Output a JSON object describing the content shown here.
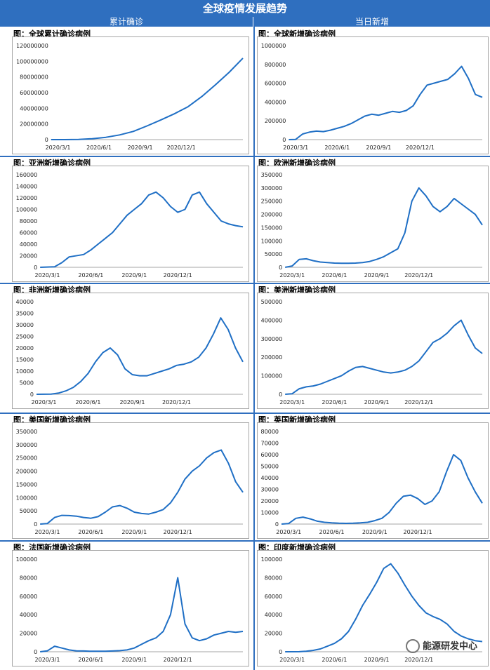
{
  "header": {
    "title": "全球疫情发展趋势",
    "left_col": "累计确诊",
    "right_col": "当日新增"
  },
  "watermark": "能源研发中心",
  "chart_data": [
    {
      "type": "line",
      "title": "图：全球累计确诊病例",
      "key": "world_total",
      "ylim": [
        0,
        120000000
      ],
      "yticks": [
        "0",
        "20000000",
        "40000000",
        "60000000",
        "80000000",
        "100000000",
        "120000000"
      ],
      "xticks": [
        "2020/3/1",
        "2020/6/1",
        "2020/9/1",
        "2020/12/1"
      ],
      "xlim": [
        0,
        14
      ],
      "series": [
        {
          "x": [
            0,
            1,
            2,
            3,
            4,
            5,
            6,
            7,
            8,
            9,
            10,
            11,
            12,
            13,
            14
          ],
          "values": [
            0,
            0,
            300000,
            1200000,
            3000000,
            6000000,
            10500000,
            17500000,
            25000000,
            33000000,
            42000000,
            55000000,
            70000000,
            86000000,
            104000000
          ]
        }
      ]
    },
    {
      "type": "line",
      "title": "图：全球新增确诊病例",
      "key": "world_new",
      "ylim": [
        0,
        1000000
      ],
      "yticks": [
        "0",
        "200000",
        "400000",
        "600000",
        "800000",
        "1000000"
      ],
      "xticks": [
        "2020/3/1",
        "2020/6/1",
        "2020/9/1",
        "2020/12/1"
      ],
      "xlim": [
        0,
        14
      ],
      "series": [
        {
          "x": [
            0,
            0.5,
            1,
            1.5,
            2,
            2.5,
            3,
            3.5,
            4,
            4.5,
            5,
            5.5,
            6,
            6.5,
            7,
            7.5,
            8,
            8.5,
            9,
            9.5,
            10,
            10.5,
            11,
            11.5,
            12,
            12.5,
            13,
            13.5,
            14
          ],
          "values": [
            0,
            2000,
            60000,
            80000,
            90000,
            85000,
            100000,
            120000,
            140000,
            170000,
            210000,
            250000,
            270000,
            260000,
            280000,
            300000,
            290000,
            310000,
            360000,
            480000,
            580000,
            600000,
            620000,
            640000,
            700000,
            780000,
            650000,
            480000,
            450000
          ]
        }
      ]
    },
    {
      "type": "line",
      "title": "图：亚洲新增确诊病例",
      "key": "asia",
      "ylim": [
        0,
        160000
      ],
      "yticks": [
        "0",
        "20000",
        "40000",
        "60000",
        "80000",
        "100000",
        "120000",
        "140000",
        "160000"
      ],
      "xticks": [
        "2020/3/1",
        "2020/6/1",
        "2020/9/1",
        "2020/12/1"
      ],
      "xlim": [
        0,
        14
      ],
      "series": [
        {
          "x": [
            0,
            1,
            1.5,
            2,
            3,
            3.5,
            4,
            4.5,
            5,
            5.5,
            6,
            6.5,
            7,
            7.5,
            8,
            8.5,
            9,
            9.5,
            10,
            10.5,
            11,
            11.5,
            12,
            12.5,
            13,
            13.5,
            14
          ],
          "values": [
            0,
            1000,
            8000,
            18000,
            22000,
            30000,
            40000,
            50000,
            60000,
            75000,
            90000,
            100000,
            110000,
            125000,
            130000,
            120000,
            105000,
            95000,
            100000,
            125000,
            130000,
            110000,
            95000,
            80000,
            75000,
            72000,
            70000
          ]
        }
      ]
    },
    {
      "type": "line",
      "title": "图：欧洲新增确诊病例",
      "key": "europe",
      "ylim": [
        0,
        350000
      ],
      "yticks": [
        "0",
        "50000",
        "100000",
        "150000",
        "200000",
        "250000",
        "300000",
        "350000"
      ],
      "xticks": [
        "2020/3/1",
        "2020/6/1",
        "2020/9/1",
        "2020/12/1"
      ],
      "xlim": [
        0,
        14
      ],
      "series": [
        {
          "x": [
            0,
            0.5,
            1,
            1.5,
            2,
            2.5,
            3,
            3.5,
            4,
            4.5,
            5,
            5.5,
            6,
            6.5,
            7,
            7.5,
            8,
            8.5,
            9,
            9.5,
            10,
            10.5,
            11,
            11.5,
            12,
            12.5,
            13,
            13.5,
            14
          ],
          "values": [
            0,
            5000,
            30000,
            32000,
            25000,
            20000,
            18000,
            16000,
            15000,
            15000,
            16000,
            18000,
            22000,
            30000,
            40000,
            55000,
            70000,
            130000,
            250000,
            300000,
            270000,
            230000,
            210000,
            230000,
            260000,
            240000,
            220000,
            200000,
            160000
          ]
        }
      ]
    },
    {
      "type": "line",
      "title": "图：非洲新增确诊病例",
      "key": "africa",
      "ylim": [
        0,
        40000
      ],
      "yticks": [
        "0",
        "5000",
        "10000",
        "15000",
        "20000",
        "25000",
        "30000",
        "35000",
        "40000"
      ],
      "xticks": [
        "2020/3/1",
        "2020/6/1",
        "2020/9/1",
        "2020/12/1"
      ],
      "xlim": [
        0,
        14
      ],
      "series": [
        {
          "x": [
            0,
            1,
            1.5,
            2,
            2.5,
            3,
            3.5,
            4,
            4.5,
            5,
            5.5,
            6,
            6.5,
            7,
            7.5,
            8,
            8.5,
            9,
            9.5,
            10,
            10.5,
            11,
            11.5,
            12,
            12.5,
            13,
            13.5,
            14
          ],
          "values": [
            0,
            100,
            500,
            1500,
            3000,
            5500,
            9000,
            14000,
            18000,
            20000,
            17000,
            11000,
            8500,
            8000,
            8000,
            9000,
            10000,
            11000,
            12500,
            13000,
            14000,
            16000,
            20000,
            26000,
            33000,
            28000,
            20000,
            14000
          ]
        }
      ]
    },
    {
      "type": "line",
      "title": "图：美洲新增确诊病例",
      "key": "americas",
      "ylim": [
        0,
        500000
      ],
      "yticks": [
        "0",
        "100000",
        "200000",
        "300000",
        "400000",
        "500000"
      ],
      "xticks": [
        "2020/3/1",
        "2020/6/1",
        "2020/9/1",
        "2020/12/1"
      ],
      "xlim": [
        0,
        14
      ],
      "series": [
        {
          "x": [
            0,
            0.5,
            1,
            1.5,
            2,
            2.5,
            3,
            3.5,
            4,
            4.5,
            5,
            5.5,
            6,
            6.5,
            7,
            7.5,
            8,
            8.5,
            9,
            9.5,
            10,
            10.5,
            11,
            11.5,
            12,
            12.5,
            13,
            13.5,
            14
          ],
          "values": [
            0,
            3000,
            30000,
            40000,
            45000,
            55000,
            70000,
            85000,
            100000,
            125000,
            145000,
            150000,
            140000,
            130000,
            120000,
            115000,
            120000,
            130000,
            150000,
            180000,
            230000,
            280000,
            300000,
            330000,
            370000,
            400000,
            320000,
            250000,
            220000
          ]
        }
      ]
    },
    {
      "type": "line",
      "title": "图：美国新增确诊病例",
      "key": "usa",
      "ylim": [
        0,
        350000
      ],
      "yticks": [
        "0",
        "50000",
        "100000",
        "150000",
        "200000",
        "250000",
        "300000",
        "350000"
      ],
      "xticks": [
        "2020/3/1",
        "2020/6/1",
        "2020/9/1",
        "2020/12/1"
      ],
      "xlim": [
        0,
        14
      ],
      "series": [
        {
          "x": [
            0,
            0.5,
            1,
            1.5,
            2,
            2.5,
            3,
            3.5,
            4,
            4.5,
            5,
            5.5,
            6,
            6.5,
            7,
            7.5,
            8,
            8.5,
            9,
            9.5,
            10,
            10.5,
            11,
            11.5,
            12,
            12.5,
            13,
            13.5,
            14
          ],
          "values": [
            0,
            2000,
            25000,
            33000,
            32000,
            30000,
            25000,
            22000,
            28000,
            45000,
            65000,
            70000,
            60000,
            45000,
            40000,
            38000,
            45000,
            55000,
            80000,
            120000,
            170000,
            200000,
            220000,
            250000,
            270000,
            280000,
            230000,
            160000,
            120000
          ]
        }
      ]
    },
    {
      "type": "line",
      "title": "图：英国新增确诊病例",
      "key": "uk",
      "ylim": [
        0,
        80000
      ],
      "yticks": [
        "0",
        "10000",
        "20000",
        "30000",
        "40000",
        "50000",
        "60000",
        "70000",
        "80000"
      ],
      "xticks": [
        "2020/3/1",
        "2020/6/1",
        "2020/9/1",
        "2020/12/1"
      ],
      "xlim": [
        0,
        14
      ],
      "series": [
        {
          "x": [
            0,
            0.5,
            1,
            1.5,
            2,
            2.5,
            3,
            3.5,
            4,
            4.5,
            5,
            5.5,
            6,
            6.5,
            7,
            7.5,
            8,
            8.5,
            9,
            9.5,
            10,
            10.5,
            11,
            11.5,
            12,
            12.5,
            13,
            13.5,
            14
          ],
          "values": [
            0,
            500,
            5000,
            6000,
            4500,
            2500,
            1500,
            1000,
            700,
            600,
            700,
            1000,
            1500,
            3000,
            5000,
            10000,
            18000,
            24000,
            25000,
            22000,
            17000,
            20000,
            28000,
            45000,
            60000,
            55000,
            40000,
            28000,
            18000
          ]
        }
      ]
    },
    {
      "type": "line",
      "title": "图：法国新增确诊病例",
      "key": "france",
      "ylim": [
        0,
        100000
      ],
      "yticks": [
        "0",
        "20000",
        "40000",
        "60000",
        "80000",
        "100000"
      ],
      "xticks": [
        "2020/3/1",
        "2020/6/1",
        "2020/9/1",
        "2020/12/1"
      ],
      "xlim": [
        0,
        14
      ],
      "series": [
        {
          "x": [
            0,
            0.5,
            1,
            1.5,
            2,
            2.5,
            3,
            3.5,
            4,
            4.5,
            5,
            5.5,
            6,
            6.5,
            7,
            7.5,
            8,
            8.5,
            9,
            9.5,
            10,
            10.5,
            11,
            11.5,
            12,
            12.5,
            13,
            13.5,
            14
          ],
          "values": [
            0,
            1000,
            6000,
            4000,
            2000,
            1000,
            800,
            500,
            500,
            600,
            800,
            1200,
            2000,
            4000,
            8000,
            12000,
            15000,
            22000,
            40000,
            80000,
            30000,
            15000,
            12000,
            14000,
            18000,
            20000,
            22000,
            21000,
            22000
          ]
        }
      ]
    },
    {
      "type": "line",
      "title": "图：印度新增确诊病例",
      "key": "india",
      "ylim": [
        0,
        100000
      ],
      "yticks": [
        "0",
        "20000",
        "40000",
        "60000",
        "80000",
        "100000"
      ],
      "xticks": [
        "2020/3/1",
        "2020/6/1",
        "2020/9/1",
        "2020/12/1"
      ],
      "xlim": [
        0,
        14
      ],
      "series": [
        {
          "x": [
            0,
            1,
            1.5,
            2,
            2.5,
            3,
            3.5,
            4,
            4.5,
            5,
            5.5,
            6,
            6.5,
            7,
            7.5,
            8,
            8.5,
            9,
            9.5,
            10,
            10.5,
            11,
            11.5,
            12,
            12.5,
            13,
            13.5,
            14
          ],
          "values": [
            0,
            100,
            500,
            1500,
            3000,
            6000,
            9000,
            14000,
            22000,
            35000,
            50000,
            62000,
            75000,
            90000,
            95000,
            85000,
            72000,
            60000,
            50000,
            42000,
            38000,
            35000,
            30000,
            22000,
            17000,
            14000,
            12000,
            11000
          ]
        }
      ]
    }
  ]
}
